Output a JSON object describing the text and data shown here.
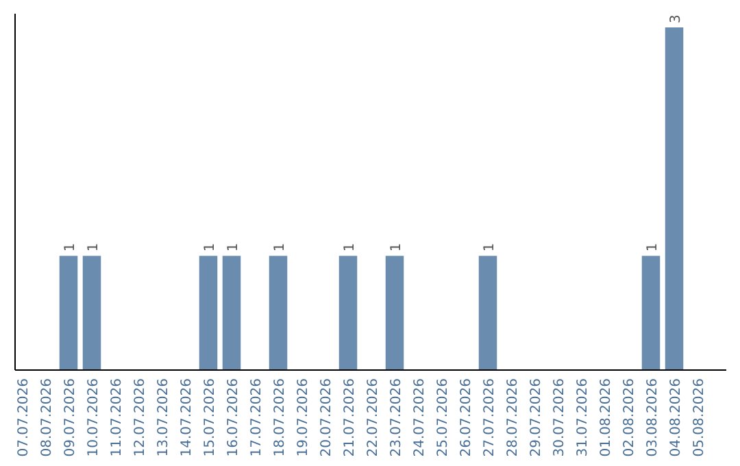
{
  "chart_data": {
    "type": "bar",
    "categories": [
      "07.07.2026",
      "08.07.2026",
      "09.07.2026",
      "10.07.2026",
      "11.07.2026",
      "12.07.2026",
      "13.07.2026",
      "14.07.2026",
      "15.07.2026",
      "16.07.2026",
      "17.07.2026",
      "18.07.2026",
      "19.07.2026",
      "20.07.2026",
      "21.07.2026",
      "22.07.2026",
      "23.07.2026",
      "24.07.2026",
      "25.07.2026",
      "26.07.2026",
      "27.07.2026",
      "28.07.2026",
      "29.07.2026",
      "30.07.2026",
      "31.07.2026",
      "01.08.2026",
      "02.08.2026",
      "03.08.2026",
      "04.08.2026",
      "05.08.2026"
    ],
    "values": [
      0,
      0,
      1,
      1,
      0,
      0,
      0,
      0,
      1,
      1,
      0,
      1,
      0,
      0,
      1,
      0,
      1,
      0,
      0,
      0,
      1,
      0,
      0,
      0,
      0,
      0,
      0,
      1,
      3,
      0
    ],
    "value_labels": [
      null,
      null,
      "1",
      "1",
      null,
      null,
      null,
      null,
      "1",
      "1",
      null,
      "1",
      null,
      null,
      "1",
      null,
      "1",
      null,
      null,
      null,
      "1",
      null,
      null,
      null,
      null,
      null,
      null,
      "1",
      "3",
      null
    ],
    "color": "#6a8caf"
  }
}
